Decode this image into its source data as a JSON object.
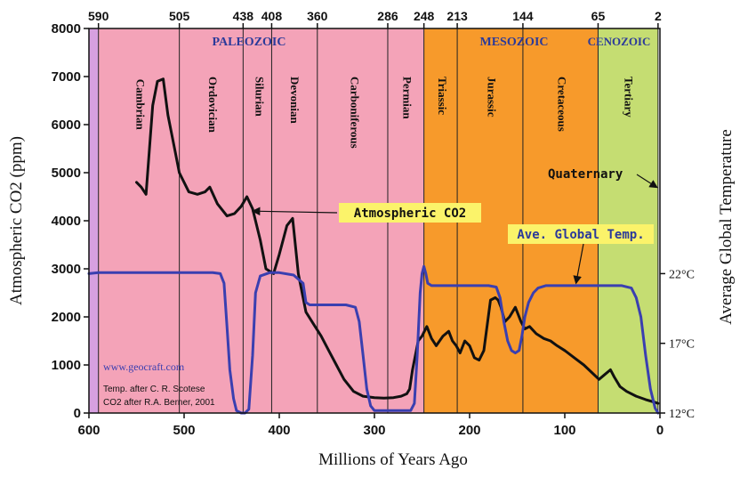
{
  "chart_data": {
    "type": "line",
    "xlabel": "Millions of Years Ago",
    "ylabel": "Atmospheric CO2 (ppm)",
    "y2label": "Average Global Temperature",
    "xlim": [
      600,
      0
    ],
    "ylim": [
      0,
      8000
    ],
    "x_ticks": [
      600,
      500,
      400,
      300,
      200,
      100,
      0
    ],
    "y_ticks": [
      0,
      1000,
      2000,
      3000,
      4000,
      5000,
      6000,
      7000,
      8000
    ],
    "y2_ticks": [
      {
        "label": "22°C",
        "at_co2": 2900
      },
      {
        "label": "17°C",
        "at_co2": 1450
      },
      {
        "label": "12°C",
        "at_co2": 0
      }
    ],
    "top_ticks": [
      {
        "label": "590",
        "x": 590
      },
      {
        "label": "505",
        "x": 505
      },
      {
        "label": "438",
        "x": 438
      },
      {
        "label": "408",
        "x": 408
      },
      {
        "label": "360",
        "x": 360
      },
      {
        "label": "286",
        "x": 286
      },
      {
        "label": "248",
        "x": 248
      },
      {
        "label": "213",
        "x": 213
      },
      {
        "label": "144",
        "x": 144
      },
      {
        "label": "65",
        "x": 65
      },
      {
        "label": "2",
        "x": 2
      }
    ],
    "eras": [
      {
        "name": "PALEOZOIC",
        "from": 590,
        "to": 248,
        "color": "#f4a3b8",
        "label_color": "#2b3a9a"
      },
      {
        "name": "MESOZOIC",
        "from": 248,
        "to": 65,
        "color": "#f79a2b",
        "label_color": "#2b3a9a"
      },
      {
        "name": "CENOZOIC",
        "from": 65,
        "to": 2,
        "color": "#c5dd72",
        "label_color": "#2b3a9a"
      }
    ],
    "pre_cambrian_strip": {
      "from": 600,
      "to": 590,
      "color": "#d7a0e0"
    },
    "periods": [
      {
        "name": "Cambrian",
        "at": 547,
        "y": 6950
      },
      {
        "name": "Ordovician",
        "at": 471,
        "y": 7000
      },
      {
        "name": "Silurian",
        "at": 422,
        "y": 7000
      },
      {
        "name": "Devonian",
        "at": 385,
        "y": 7000
      },
      {
        "name": "Carboniferous",
        "at": 322,
        "y": 7000
      },
      {
        "name": "Permian",
        "at": 267,
        "y": 7000
      },
      {
        "name": "Triassic",
        "at": 230,
        "y": 7000
      },
      {
        "name": "Jurassic",
        "at": 178,
        "y": 7000
      },
      {
        "name": "Cretaceous",
        "at": 104,
        "y": 7000
      },
      {
        "name": "Tertiary",
        "at": 34,
        "y": 7000
      }
    ],
    "boundaries": [
      505,
      438,
      408,
      360,
      286,
      213,
      144
    ],
    "series": [
      {
        "name": "Atmospheric CO2",
        "color": "#111111",
        "x": [
          550,
          545,
          540,
          533,
          528,
          522,
          517,
          510,
          505,
          495,
          486,
          478,
          473,
          465,
          455,
          447,
          440,
          434,
          428,
          420,
          414,
          406,
          400,
          396,
          392,
          386,
          380,
          372,
          364,
          356,
          348,
          340,
          332,
          322,
          312,
          300,
          290,
          280,
          272,
          266,
          263,
          260,
          254,
          250,
          245,
          240,
          235,
          228,
          222,
          218,
          214,
          210,
          205,
          200,
          195,
          190,
          185,
          178,
          173,
          170,
          167,
          163,
          158,
          152,
          146,
          142,
          137,
          130,
          122,
          115,
          108,
          100,
          90,
          80,
          72,
          64,
          58,
          52,
          48,
          42,
          35,
          25,
          15,
          10,
          5,
          2
        ],
        "y": [
          4800,
          4700,
          4550,
          6400,
          6900,
          6950,
          6200,
          5500,
          5000,
          4600,
          4550,
          4600,
          4700,
          4350,
          4100,
          4150,
          4300,
          4500,
          4250,
          3600,
          3000,
          2900,
          3300,
          3600,
          3900,
          4050,
          2900,
          2100,
          1850,
          1600,
          1300,
          1000,
          700,
          450,
          350,
          320,
          310,
          320,
          350,
          400,
          500,
          900,
          1500,
          1600,
          1800,
          1550,
          1400,
          1600,
          1700,
          1500,
          1400,
          1250,
          1500,
          1400,
          1150,
          1100,
          1300,
          2350,
          2400,
          2350,
          2200,
          1900,
          2000,
          2200,
          1900,
          1750,
          1800,
          1650,
          1550,
          1500,
          1400,
          1300,
          1150,
          1000,
          850,
          700,
          800,
          900,
          750,
          550,
          450,
          350,
          280,
          250,
          220,
          200
        ]
      },
      {
        "name": "Ave. Global Temp.",
        "color": "#3a3fb0",
        "x": [
          600,
          590,
          560,
          530,
          500,
          470,
          462,
          458,
          455,
          452,
          448,
          445,
          440,
          436,
          432,
          428,
          425,
          420,
          410,
          400,
          385,
          375,
          372,
          368,
          350,
          330,
          320,
          316,
          312,
          308,
          304,
          300,
          290,
          270,
          262,
          258,
          255,
          252,
          250,
          248,
          246,
          244,
          240,
          220,
          200,
          180,
          172,
          168,
          164,
          160,
          156,
          152,
          148,
          145,
          142,
          138,
          133,
          128,
          120,
          100,
          80,
          60,
          40,
          30,
          25,
          20,
          15,
          10,
          5,
          2
        ],
        "y": [
          2900,
          2920,
          2920,
          2920,
          2920,
          2920,
          2900,
          2700,
          1800,
          900,
          300,
          50,
          0,
          0,
          80,
          1200,
          2500,
          2850,
          2920,
          2920,
          2870,
          2700,
          2300,
          2250,
          2250,
          2250,
          2200,
          1900,
          1200,
          500,
          150,
          50,
          50,
          50,
          50,
          200,
          1200,
          2500,
          2900,
          3050,
          2900,
          2700,
          2650,
          2650,
          2650,
          2650,
          2620,
          2400,
          1900,
          1500,
          1300,
          1250,
          1300,
          1600,
          2000,
          2300,
          2500,
          2600,
          2650,
          2650,
          2650,
          2650,
          2650,
          2600,
          2400,
          2000,
          1200,
          500,
          100,
          0
        ]
      }
    ],
    "annotations": [
      {
        "text": "Atmospheric CO2",
        "box_x": 305,
        "box_y": 4350,
        "arrow_to_x": 440,
        "arrow_to_y": 4200
      },
      {
        "text": "Ave. Global Temp.",
        "box_x": 150,
        "box_y": 3790,
        "arrow_to_x": 88,
        "arrow_to_y": 2720
      },
      {
        "text": "Quaternary",
        "label_x": 95,
        "label_y": 5020,
        "arrow_to_x": 2,
        "arrow_to_y": 4850
      }
    ],
    "credits": {
      "site": "www.geocraft.com",
      "line1": "Temp. after C. R. Scotese",
      "line2": "CO2 after R.A. Berner, 2001"
    },
    "grid": false
  }
}
